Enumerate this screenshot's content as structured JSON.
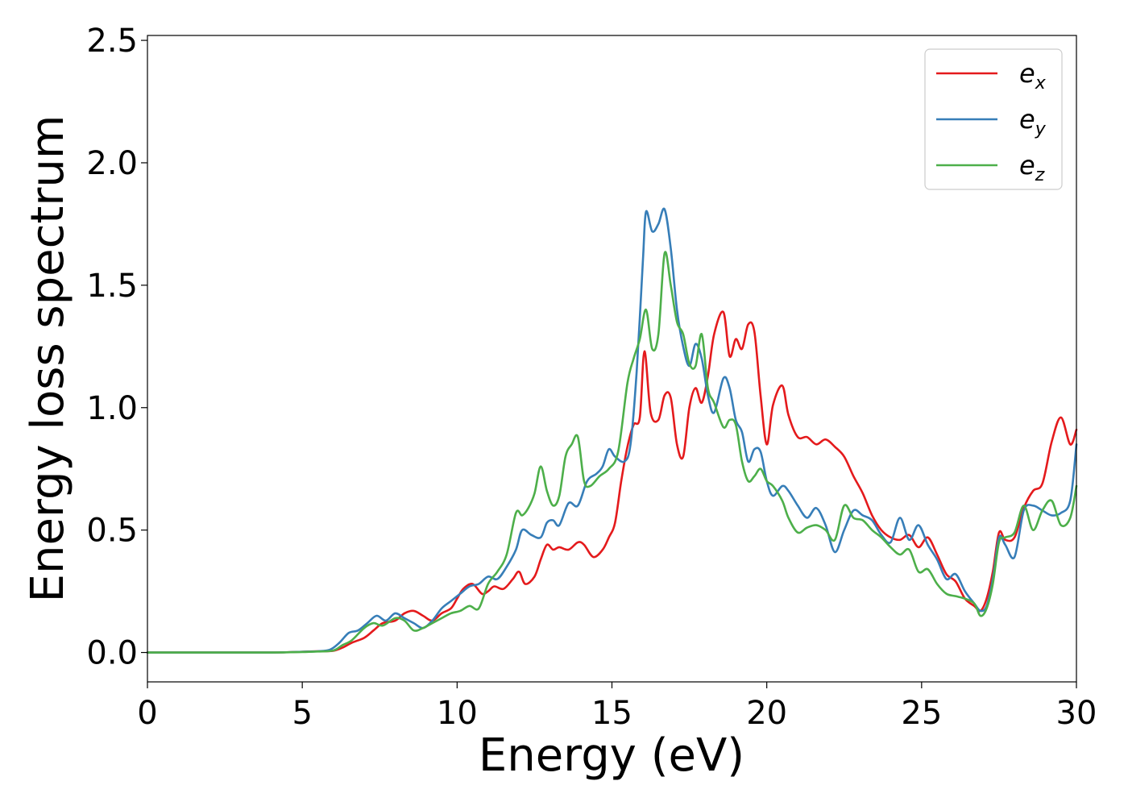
{
  "chart_data": {
    "type": "line",
    "xlabel": "Energy (eV)",
    "ylabel": "Energy loss spectrum",
    "xlim": [
      0,
      30
    ],
    "ylim": [
      -0.12,
      2.52
    ],
    "xticks": [
      "0",
      "5",
      "10",
      "15",
      "20",
      "25",
      "30"
    ],
    "yticks": [
      "0.0",
      "0.5",
      "1.0",
      "1.5",
      "2.0",
      "2.5"
    ],
    "grid": false,
    "legend_position": "top-right",
    "series": [
      {
        "name": "e",
        "subscript": "x",
        "color": "#e41a1c",
        "x": [
          0,
          2,
          4,
          5,
          5.5,
          6,
          6.3,
          6.6,
          7,
          7.3,
          7.6,
          8,
          8.3,
          8.6,
          8.9,
          9.2,
          9.5,
          9.8,
          10,
          10.2,
          10.5,
          10.8,
          11,
          11.2,
          11.5,
          11.8,
          12,
          12.2,
          12.5,
          12.7,
          12.9,
          13.1,
          13.3,
          13.6,
          13.9,
          14.1,
          14.4,
          14.7,
          14.9,
          15.1,
          15.3,
          15.5,
          15.7,
          15.9,
          16.05,
          16.25,
          16.5,
          16.7,
          16.9,
          17.1,
          17.3,
          17.5,
          17.7,
          17.9,
          18.1,
          18.3,
          18.6,
          18.8,
          19.0,
          19.2,
          19.4,
          19.6,
          19.8,
          20.0,
          20.2,
          20.5,
          20.7,
          21.0,
          21.3,
          21.6,
          21.9,
          22.2,
          22.5,
          22.8,
          23.1,
          23.4,
          23.7,
          24.0,
          24.3,
          24.6,
          24.9,
          25.2,
          25.5,
          25.8,
          26.1,
          26.4,
          26.7,
          26.9,
          27.1,
          27.3,
          27.5,
          27.7,
          28.0,
          28.3,
          28.6,
          28.9,
          29.2,
          29.5,
          29.8,
          30
        ],
        "y": [
          0,
          0,
          0,
          0.003,
          0.005,
          0.007,
          0.02,
          0.04,
          0.06,
          0.09,
          0.12,
          0.13,
          0.16,
          0.17,
          0.15,
          0.13,
          0.16,
          0.18,
          0.22,
          0.26,
          0.28,
          0.24,
          0.25,
          0.27,
          0.26,
          0.3,
          0.33,
          0.28,
          0.31,
          0.38,
          0.44,
          0.42,
          0.43,
          0.42,
          0.45,
          0.44,
          0.39,
          0.42,
          0.47,
          0.53,
          0.7,
          0.84,
          0.93,
          0.96,
          1.23,
          0.98,
          0.95,
          1.05,
          1.04,
          0.85,
          0.8,
          1.0,
          1.08,
          1.02,
          1.13,
          1.3,
          1.39,
          1.21,
          1.28,
          1.24,
          1.34,
          1.31,
          1.05,
          0.85,
          1.01,
          1.09,
          0.97,
          0.88,
          0.88,
          0.85,
          0.87,
          0.84,
          0.8,
          0.72,
          0.65,
          0.56,
          0.5,
          0.47,
          0.46,
          0.48,
          0.43,
          0.47,
          0.4,
          0.32,
          0.29,
          0.22,
          0.19,
          0.17,
          0.22,
          0.33,
          0.49,
          0.46,
          0.47,
          0.59,
          0.66,
          0.69,
          0.86,
          0.96,
          0.85,
          0.91
        ]
      },
      {
        "name": "e",
        "subscript": "y",
        "color": "#377eb8",
        "x": [
          0,
          2,
          4,
          5,
          5.5,
          5.9,
          6.2,
          6.5,
          6.8,
          7.1,
          7.4,
          7.7,
          8.0,
          8.3,
          8.6,
          8.9,
          9.2,
          9.5,
          9.8,
          10.1,
          10.4,
          10.7,
          11.0,
          11.3,
          11.6,
          11.9,
          12.1,
          12.4,
          12.7,
          12.9,
          13.1,
          13.3,
          13.6,
          13.9,
          14.2,
          14.5,
          14.7,
          14.9,
          15.1,
          15.4,
          15.6,
          15.8,
          16.0,
          16.1,
          16.3,
          16.5,
          16.7,
          16.9,
          17.1,
          17.3,
          17.5,
          17.7,
          17.9,
          18.1,
          18.3,
          18.6,
          18.8,
          19.0,
          19.2,
          19.4,
          19.6,
          19.8,
          20.0,
          20.2,
          20.5,
          20.7,
          21.0,
          21.3,
          21.6,
          21.9,
          22.2,
          22.5,
          22.8,
          23.1,
          23.4,
          23.7,
          24.0,
          24.3,
          24.6,
          24.9,
          25.2,
          25.5,
          25.8,
          26.1,
          26.4,
          26.7,
          26.9,
          27.1,
          27.3,
          27.5,
          27.7,
          28.0,
          28.3,
          28.6,
          28.9,
          29.2,
          29.5,
          29.8,
          30
        ],
        "y": [
          0,
          0,
          0,
          0.003,
          0.005,
          0.012,
          0.04,
          0.08,
          0.09,
          0.12,
          0.15,
          0.13,
          0.16,
          0.14,
          0.12,
          0.1,
          0.13,
          0.18,
          0.21,
          0.24,
          0.27,
          0.28,
          0.31,
          0.3,
          0.35,
          0.42,
          0.5,
          0.48,
          0.47,
          0.53,
          0.54,
          0.52,
          0.61,
          0.6,
          0.7,
          0.73,
          0.76,
          0.83,
          0.8,
          0.78,
          0.85,
          1.15,
          1.6,
          1.8,
          1.72,
          1.75,
          1.81,
          1.65,
          1.4,
          1.25,
          1.17,
          1.26,
          1.2,
          1.05,
          0.98,
          1.12,
          1.08,
          0.95,
          0.9,
          0.78,
          0.83,
          0.82,
          0.7,
          0.64,
          0.68,
          0.66,
          0.6,
          0.55,
          0.59,
          0.52,
          0.41,
          0.5,
          0.58,
          0.56,
          0.54,
          0.48,
          0.45,
          0.55,
          0.46,
          0.52,
          0.44,
          0.38,
          0.3,
          0.32,
          0.25,
          0.2,
          0.17,
          0.19,
          0.3,
          0.47,
          0.44,
          0.39,
          0.58,
          0.6,
          0.58,
          0.56,
          0.57,
          0.62,
          0.85
        ]
      },
      {
        "name": "e",
        "subscript": "z",
        "color": "#4daf4a",
        "x": [
          0,
          2,
          4,
          5,
          5.5,
          6,
          6.3,
          6.6,
          7,
          7.3,
          7.6,
          8,
          8.3,
          8.6,
          8.9,
          9.2,
          9.5,
          9.8,
          10.1,
          10.4,
          10.7,
          11.0,
          11.3,
          11.6,
          11.9,
          12.1,
          12.3,
          12.5,
          12.7,
          12.9,
          13.1,
          13.3,
          13.5,
          13.7,
          13.9,
          14.1,
          14.3,
          14.6,
          14.9,
          15.2,
          15.5,
          15.7,
          15.9,
          16.1,
          16.3,
          16.5,
          16.7,
          16.9,
          17.1,
          17.3,
          17.5,
          17.7,
          17.9,
          18.1,
          18.3,
          18.6,
          18.8,
          19.0,
          19.2,
          19.4,
          19.6,
          19.8,
          20.0,
          20.2,
          20.5,
          20.7,
          21.0,
          21.3,
          21.6,
          21.9,
          22.2,
          22.5,
          22.8,
          23.1,
          23.4,
          23.7,
          24.0,
          24.3,
          24.6,
          24.9,
          25.2,
          25.5,
          25.8,
          26.1,
          26.4,
          26.7,
          26.9,
          27.1,
          27.3,
          27.5,
          27.7,
          28.0,
          28.3,
          28.6,
          28.9,
          29.2,
          29.5,
          29.8,
          30
        ],
        "y": [
          0,
          0,
          0,
          0.002,
          0.004,
          0.008,
          0.03,
          0.05,
          0.1,
          0.12,
          0.11,
          0.14,
          0.13,
          0.09,
          0.1,
          0.12,
          0.14,
          0.16,
          0.17,
          0.19,
          0.18,
          0.28,
          0.33,
          0.4,
          0.57,
          0.56,
          0.59,
          0.65,
          0.76,
          0.66,
          0.6,
          0.64,
          0.8,
          0.85,
          0.88,
          0.7,
          0.68,
          0.72,
          0.75,
          0.82,
          1.1,
          1.2,
          1.28,
          1.4,
          1.24,
          1.3,
          1.63,
          1.5,
          1.35,
          1.3,
          1.18,
          1.17,
          1.3,
          1.08,
          1.02,
          0.92,
          0.95,
          0.93,
          0.78,
          0.7,
          0.72,
          0.75,
          0.7,
          0.68,
          0.62,
          0.55,
          0.49,
          0.51,
          0.52,
          0.5,
          0.46,
          0.6,
          0.55,
          0.54,
          0.5,
          0.47,
          0.43,
          0.4,
          0.42,
          0.33,
          0.34,
          0.28,
          0.24,
          0.23,
          0.22,
          0.2,
          0.15,
          0.18,
          0.28,
          0.45,
          0.47,
          0.49,
          0.6,
          0.5,
          0.58,
          0.62,
          0.52,
          0.55,
          0.68
        ]
      }
    ]
  }
}
